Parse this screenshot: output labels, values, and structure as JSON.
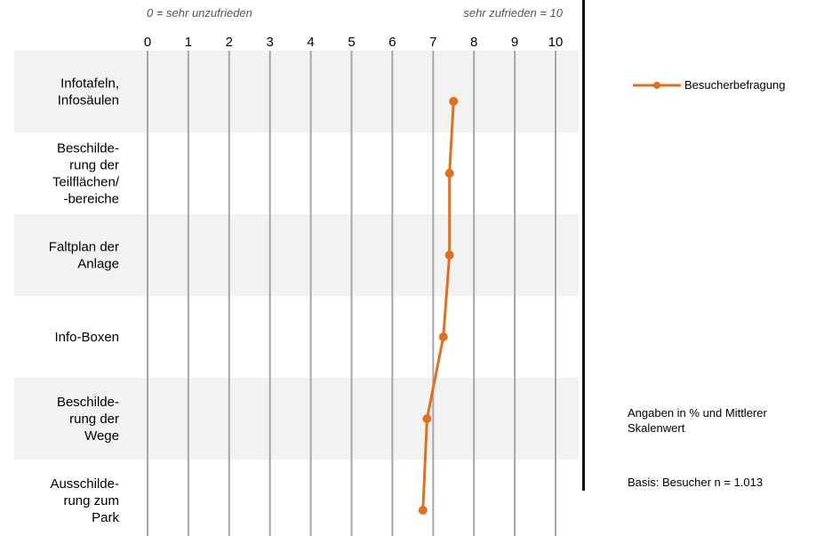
{
  "chart_data": {
    "type": "line",
    "orientation": "horizontal",
    "scale_note_left": "0 = sehr unzufrieden",
    "scale_note_right": "sehr zufrieden = 10",
    "x_ticks": [
      "0",
      "1",
      "2",
      "3",
      "4",
      "5",
      "6",
      "7",
      "8",
      "9",
      "10"
    ],
    "xlim": [
      0,
      10
    ],
    "categories": [
      [
        "Infotafeln,",
        "Infosäulen"
      ],
      [
        "Beschilde-",
        "rung der",
        "Teilflächen/",
        "-bereiche"
      ],
      [
        "Faltplan der",
        "Anlage"
      ],
      [
        "Info-Boxen"
      ],
      [
        "Beschilde-",
        "rung der",
        "Wege"
      ],
      [
        "Ausschilde-",
        "rung zum",
        "Park"
      ]
    ],
    "series": [
      {
        "name": "Besucherbefragung",
        "color": "#e07020",
        "values": [
          7.5,
          7.4,
          7.4,
          7.25,
          6.85,
          6.75
        ]
      }
    ],
    "row_shading": [
      "#f2f2f2",
      "#ffffff",
      "#f2f2f2",
      "#ffffff",
      "#f2f2f2",
      "#ffffff"
    ],
    "grid": true,
    "gridline_color": "#a6a6a6",
    "legend_position": "right"
  },
  "notes": {
    "scale": "Angaben in % und Mittlerer Skalenwert",
    "base": "Basis: Besucher n = 1.013"
  }
}
